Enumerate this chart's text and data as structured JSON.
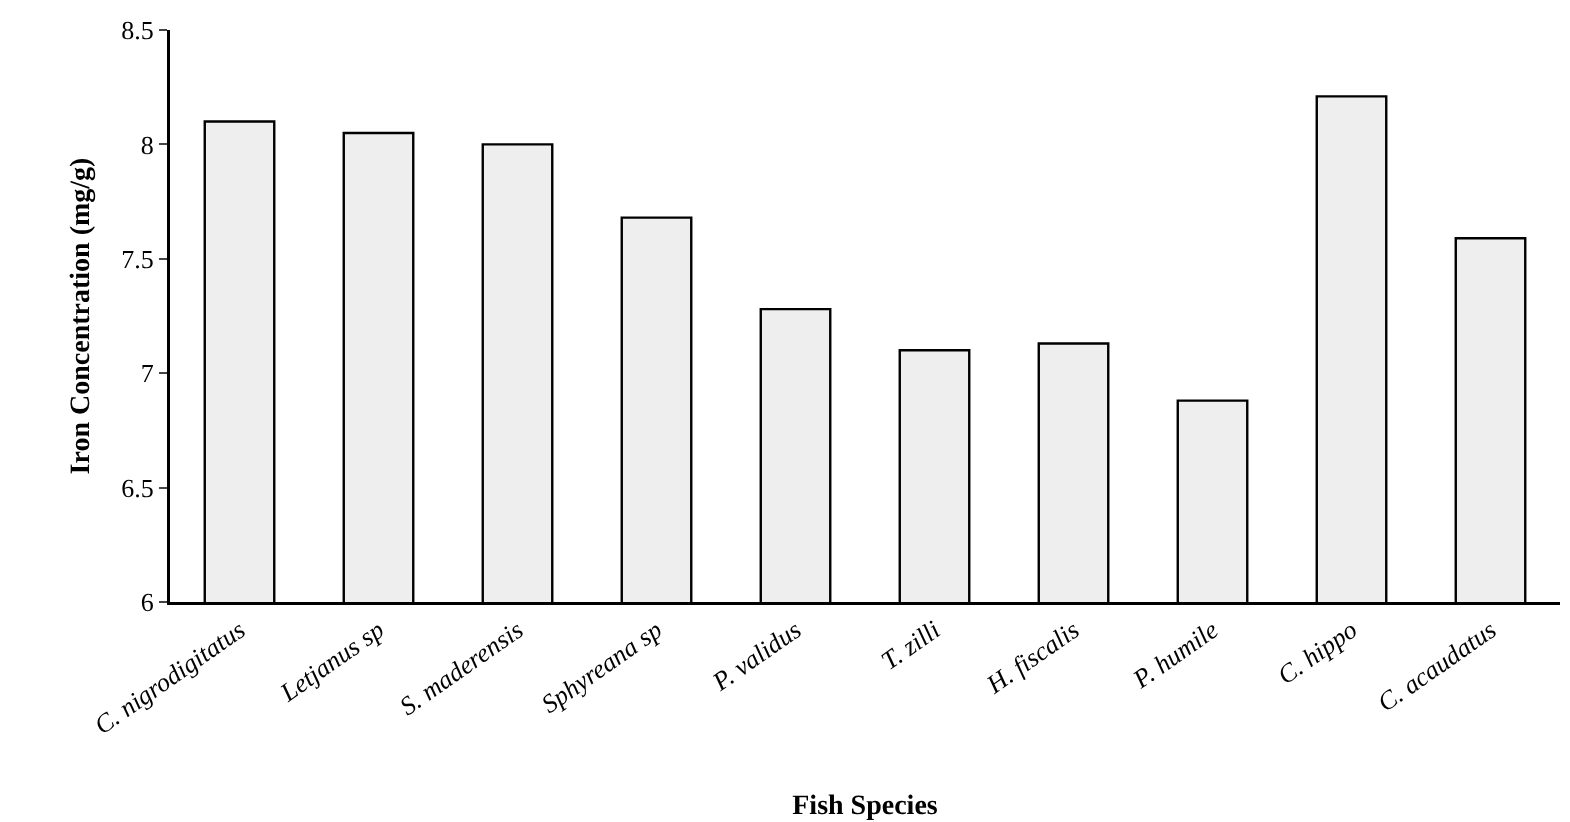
{
  "chart_data": {
    "type": "bar",
    "xlabel": "Fish Species",
    "ylabel": "Iron Concentration (mg/g)",
    "categories": [
      "C. nigrodigitatus",
      "Letjanus sp",
      "S. maderensis",
      "Sphyreana sp",
      "P. validus",
      "T. zilli",
      "H. fiscalis",
      "P. humile",
      "C. hippo",
      "C. acaudatus"
    ],
    "values": [
      8.1,
      8.05,
      8.0,
      7.68,
      7.28,
      7.1,
      7.13,
      6.88,
      8.21,
      7.59
    ],
    "color": "#eeeeee",
    "ylim": [
      6,
      8.5
    ],
    "yticks": [
      6,
      6.5,
      7,
      7.5,
      8,
      8.5
    ],
    "grid": false,
    "legend": false
  }
}
